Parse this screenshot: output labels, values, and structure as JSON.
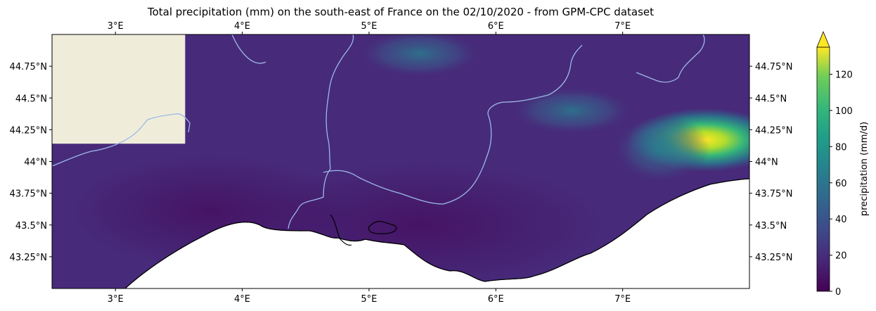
{
  "title": "Total precipitation (mm) on the south-east of France on the 02/10/2020 - from GPM-CPC dataset",
  "map": {
    "extent": {
      "lon": [
        2.5,
        8.0
      ],
      "lat": [
        43.0,
        45.0
      ]
    },
    "lon_ticks": [
      {
        "value": 3,
        "label": "3°E"
      },
      {
        "value": 4,
        "label": "4°E"
      },
      {
        "value": 5,
        "label": "5°E"
      },
      {
        "value": 6,
        "label": "6°E"
      },
      {
        "value": 7,
        "label": "7°E"
      }
    ],
    "lat_ticks": [
      {
        "value": 44.75,
        "label": "44.75°N"
      },
      {
        "value": 44.5,
        "label": "44.5°N"
      },
      {
        "value": 44.25,
        "label": "44.25°N"
      },
      {
        "value": 44.0,
        "label": "44°N"
      },
      {
        "value": 43.75,
        "label": "43.75°N"
      },
      {
        "value": 43.5,
        "label": "43.5°N"
      },
      {
        "value": 43.25,
        "label": "43.25°N"
      }
    ],
    "no_data_region": {
      "lon": [
        2.5,
        3.55
      ],
      "lat": [
        44.14,
        45.0
      ]
    },
    "colors": {
      "base_field": "#472a7a",
      "no_data": "#efedda",
      "sea": "#ffffff",
      "rivers": "#9cb8e6",
      "coast": "#000000"
    }
  },
  "colorbar": {
    "label": "precipitation (mm/d)",
    "min": 0,
    "max": 135,
    "extend": "max",
    "ticks": [
      0,
      20,
      40,
      60,
      80,
      100,
      120
    ],
    "tick_labels": [
      "0",
      "20",
      "40",
      "60",
      "80",
      "100",
      "120"
    ],
    "colormap": "viridis"
  },
  "chart_data": {
    "type": "heatmap",
    "title": "Total precipitation (mm) on the south-east of France on the 02/10/2020 - from GPM-CPC dataset",
    "variable_label": "precipitation (mm/d)",
    "lon_range": [
      2.5,
      8.0
    ],
    "lat_range": [
      43.0,
      45.0
    ],
    "value_range": [
      0,
      135
    ],
    "hotspots": [
      {
        "lon": 7.65,
        "lat": 44.17,
        "value": 125
      },
      {
        "lon": 7.3,
        "lat": 44.1,
        "value": 80
      },
      {
        "lon": 5.4,
        "lat": 44.85,
        "value": 45
      },
      {
        "lon": 6.6,
        "lat": 44.4,
        "value": 30
      }
    ],
    "background_value": 15
  }
}
